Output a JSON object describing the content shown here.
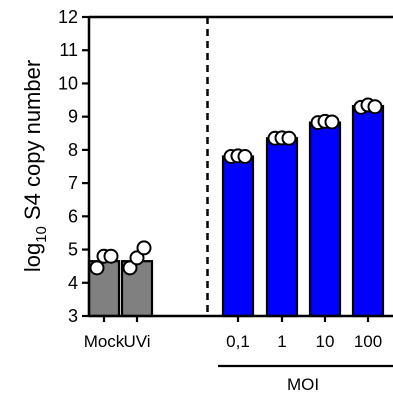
{
  "chart_data": {
    "type": "bar",
    "ylabel": {
      "prefix": "log",
      "subscript": "10",
      "rest": " S4 copy number"
    },
    "ylim": [
      3,
      12
    ],
    "yticks": [
      3,
      4,
      5,
      6,
      7,
      8,
      9,
      10,
      11,
      12
    ],
    "categories": [
      "Mock",
      "UVi",
      "0,1",
      "1",
      "10",
      "100"
    ],
    "values": [
      4.65,
      4.65,
      7.8,
      8.35,
      8.82,
      9.32
    ],
    "bar_colors": [
      "#808080",
      "#808080",
      "#0000ff",
      "#0000ff",
      "#0000ff",
      "#0000ff"
    ],
    "points": [
      [
        4.45,
        4.8,
        4.8
      ],
      [
        4.45,
        4.75,
        5.05
      ],
      [
        7.8,
        7.82,
        7.8
      ],
      [
        8.35,
        8.36,
        8.35
      ],
      [
        8.82,
        8.86,
        8.84
      ],
      [
        9.28,
        9.35,
        9.3
      ]
    ],
    "group_bracket": {
      "label": "MOI",
      "from_category": 2,
      "to_category": 5
    },
    "separator": {
      "style": "dashed",
      "between_categories": [
        1,
        2
      ]
    },
    "grid": false,
    "legend": "none"
  }
}
